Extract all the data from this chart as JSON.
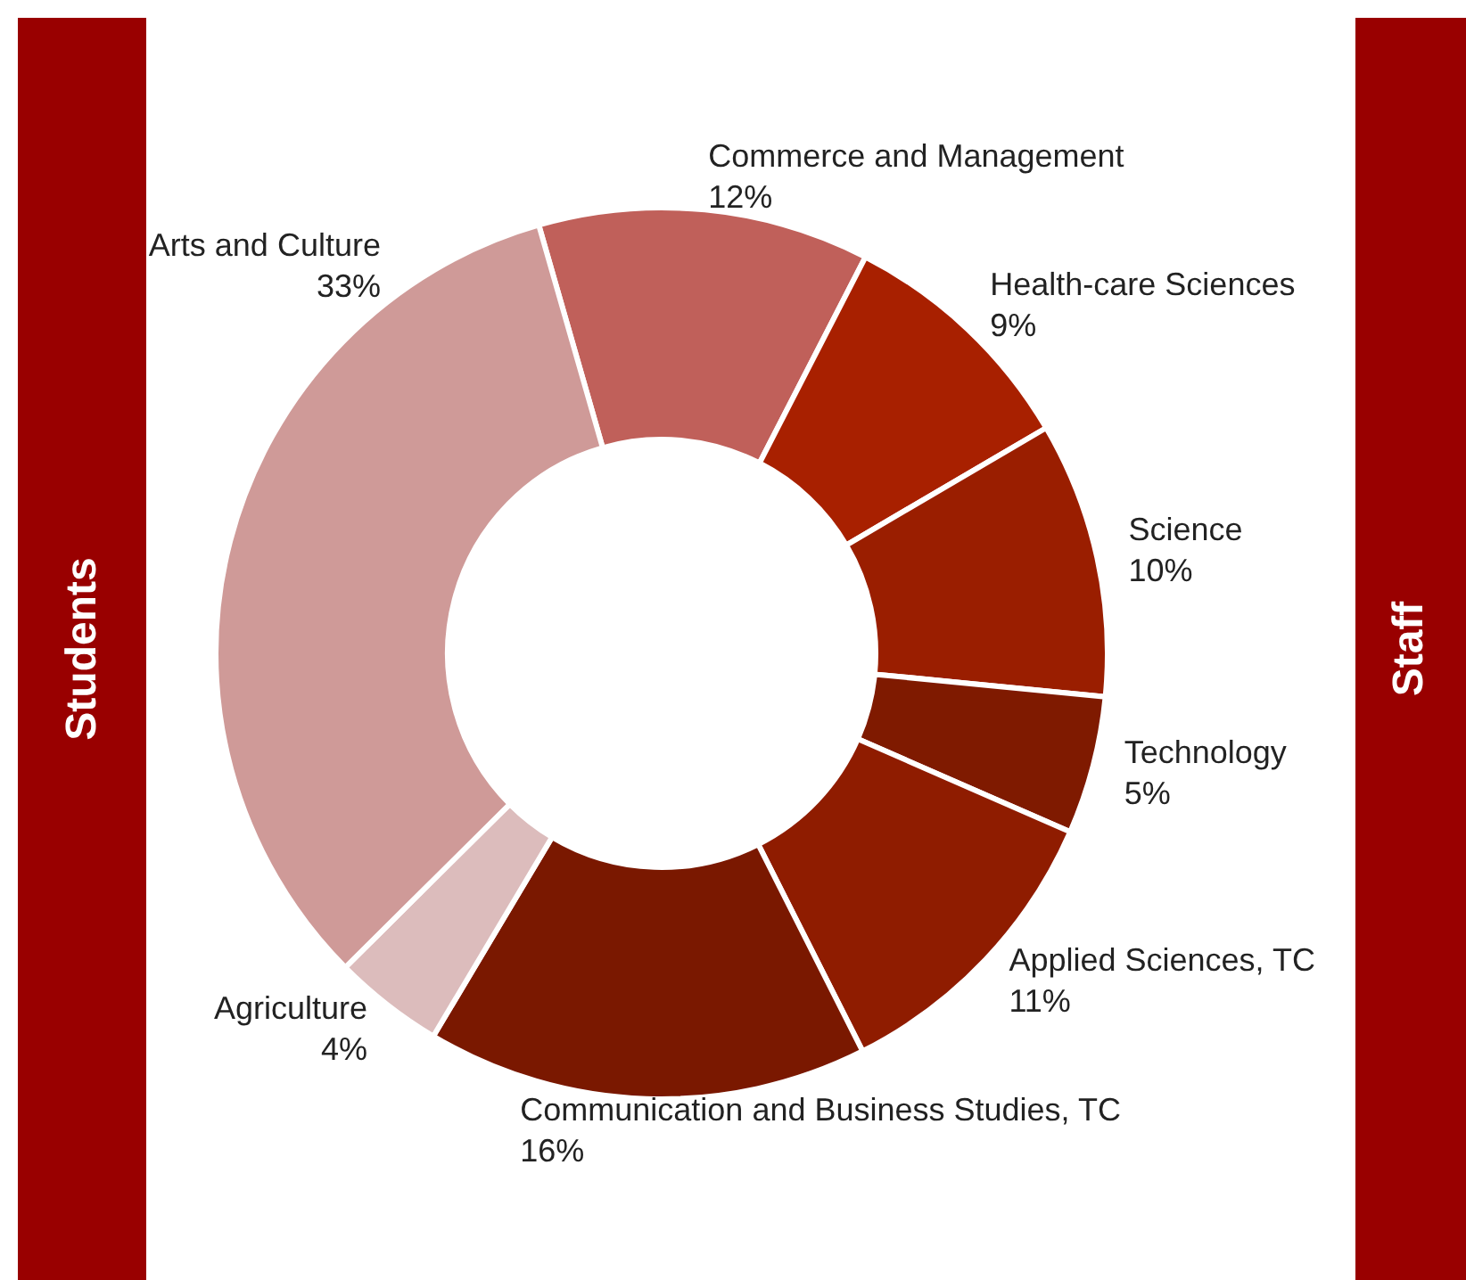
{
  "chart_data": {
    "type": "donut",
    "categories": [
      "Commerce and Management",
      "Health-care Sciences",
      "Science",
      "Technology",
      "Applied Sciences, TC",
      "Communication and Business Studies, TC",
      "Agriculture",
      "Arts and Culture"
    ],
    "values": [
      12,
      9,
      10,
      5,
      11,
      16,
      4,
      33
    ],
    "colors": [
      "#c0605a",
      "#a82000",
      "#9a1e00",
      "#7f1a00",
      "#8f1c00",
      "#7a1800",
      "#dcbcbc",
      "#cf9a98"
    ],
    "value_labels": [
      "12%",
      "9%",
      "10%",
      "5%",
      "11%",
      "16%",
      "4%",
      "33%"
    ],
    "annotations": [
      "Students",
      "Staff"
    ]
  }
}
